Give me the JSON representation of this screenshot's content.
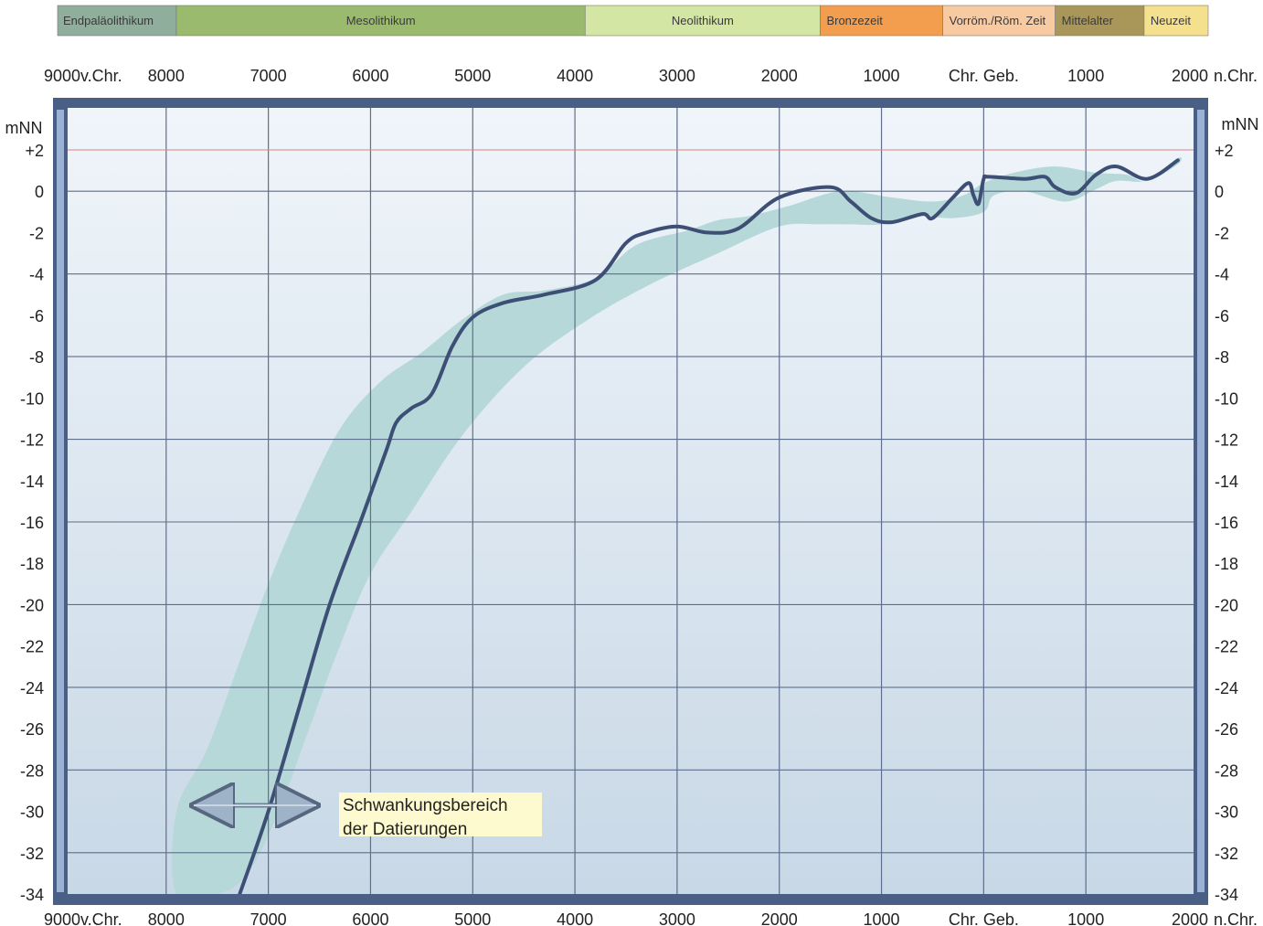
{
  "eras": [
    {
      "label": "Endpaläolithikum",
      "start": -9000,
      "end": -7900,
      "color": "#8fae9c"
    },
    {
      "label": "Mesolithikum",
      "start": -7900,
      "end": -3900,
      "color": "#9aba6e"
    },
    {
      "label": "Neolithikum",
      "start": -3900,
      "end": -1600,
      "color": "#d3e6a4"
    },
    {
      "label": "Bronzezeit",
      "start": -1600,
      "end": -400,
      "color": "#f39e4e"
    },
    {
      "label": "Vorröm./Röm. Zeit",
      "start": -400,
      "end": 700,
      "color": "#f8caa2"
    },
    {
      "label": "Mittelalter",
      "start": 700,
      "end": 1570,
      "color": "#a9975a"
    },
    {
      "label": "Neuzeit",
      "start": 1570,
      "end": 2230,
      "color": "#f5e08e"
    }
  ],
  "x_tick_labels": [
    {
      "value": -9000,
      "label": "9000"
    },
    {
      "value": -8000,
      "label": "8000"
    },
    {
      "value": -7000,
      "label": "7000"
    },
    {
      "value": -6000,
      "label": "6000"
    },
    {
      "value": -5000,
      "label": "5000"
    },
    {
      "value": -4000,
      "label": "4000"
    },
    {
      "value": -3000,
      "label": "3000"
    },
    {
      "value": -2000,
      "label": "2000"
    },
    {
      "value": -1000,
      "label": "1000"
    },
    {
      "value": 0,
      "label": "Chr. Geb."
    },
    {
      "value": 1000,
      "label": "1000"
    },
    {
      "value": 2000,
      "label": "2000"
    }
  ],
  "x_unit_bc": "v.Chr.",
  "x_unit_ad": "n.Chr.",
  "y_unit": "mNN",
  "y_tick_labels": [
    {
      "value": 2,
      "label": "+2"
    },
    {
      "value": 0,
      "label": "0"
    },
    {
      "value": -2,
      "label": "-2"
    },
    {
      "value": -4,
      "label": "-4"
    },
    {
      "value": -6,
      "label": "-6"
    },
    {
      "value": -8,
      "label": "-8"
    },
    {
      "value": -10,
      "label": "-10"
    },
    {
      "value": -12,
      "label": "-12"
    },
    {
      "value": -14,
      "label": "-14"
    },
    {
      "value": -16,
      "label": "-16"
    },
    {
      "value": -18,
      "label": "-18"
    },
    {
      "value": -20,
      "label": "-20"
    },
    {
      "value": -22,
      "label": "-22"
    },
    {
      "value": -24,
      "label": "-24"
    },
    {
      "value": -26,
      "label": "-26"
    },
    {
      "value": -28,
      "label": "-28"
    },
    {
      "value": -30,
      "label": "-30"
    },
    {
      "value": -32,
      "label": "-32"
    },
    {
      "value": -34,
      "label": "-34"
    }
  ],
  "annotation": {
    "line1": "Schwankungsbereich",
    "line2": "der Datierungen"
  },
  "colors": {
    "curve": "#3d4f75",
    "band": "#b7d8d9",
    "frame": "#4a5f86",
    "grid": "#5f6e8c",
    "reference_line": "#e08080"
  },
  "chart_data": {
    "type": "line",
    "xlim": [
      -9000,
      2000
    ],
    "ylim": [
      -34,
      2
    ],
    "grid": true,
    "reference_line_y": 2,
    "series": [
      {
        "x": [
          -7280,
          -7000,
          -6700,
          -6400,
          -6100,
          -5850,
          -5750,
          -5600,
          -5400,
          -5200,
          -5000,
          -4700,
          -4300,
          -3800,
          -3500,
          -3300,
          -3000,
          -2700,
          -2400,
          -2000,
          -1500,
          -1300,
          -1100,
          -900,
          -600,
          -500,
          -300,
          -150,
          -100,
          -50,
          0,
          50,
          400,
          600,
          700,
          900,
          1100,
          1300,
          1600,
          1900
        ],
        "y": [
          -34,
          -30,
          -25,
          -20,
          -16,
          -12.6,
          -11.2,
          -10.5,
          -9.8,
          -7.5,
          -6.1,
          -5.4,
          -5,
          -4.3,
          -2.5,
          -2,
          -1.7,
          -2,
          -1.8,
          -0.3,
          0.2,
          -0.5,
          -1.3,
          -1.5,
          -1.1,
          -1.3,
          -0.3,
          0.4,
          -0.2,
          -0.6,
          0.6,
          0.7,
          0.6,
          0.7,
          0.2,
          -0.1,
          0.8,
          1.2,
          0.6,
          1.5
        ]
      }
    ],
    "band": {
      "upper_x": [
        -7900,
        -7600,
        -7300,
        -7000,
        -6700,
        -6300,
        -5900,
        -5500,
        -5100,
        -4700,
        -4300,
        -3800,
        -3400,
        -2900,
        -2600,
        -2300,
        -1900,
        -1400,
        -900,
        -500,
        -200,
        0,
        300,
        700,
        1100,
        1400,
        1600,
        1900
      ],
      "upper_y": [
        -30,
        -27,
        -23,
        -19,
        -15.5,
        -11.5,
        -9.2,
        -7.8,
        -6.2,
        -5,
        -4.8,
        -4.2,
        -2.6,
        -1.9,
        -1.4,
        -1.2,
        -0.7,
        0,
        -0.3,
        -0.5,
        -0.2,
        0.4,
        0.9,
        1.2,
        0.9,
        0.8,
        0.5,
        1.6
      ],
      "lower_x": [
        1900,
        1600,
        1300,
        1100,
        800,
        400,
        100,
        0,
        -300,
        -700,
        -1000,
        -1300,
        -1600,
        -2000,
        -2600,
        -3300,
        -3900,
        -4500,
        -5100,
        -5600,
        -6000,
        -6300,
        -6600,
        -6900,
        -7200,
        -7500,
        -7900
      ],
      "lower_y": [
        1.3,
        0.5,
        0.5,
        0.1,
        -0.5,
        0,
        -0.2,
        -1,
        -1.3,
        -1.2,
        -1.6,
        -1.6,
        -1.6,
        -1.7,
        -3,
        -4.6,
        -6.3,
        -8.5,
        -11.8,
        -15.5,
        -18.5,
        -22,
        -26,
        -30,
        -33,
        -34,
        -34
      ]
    }
  }
}
